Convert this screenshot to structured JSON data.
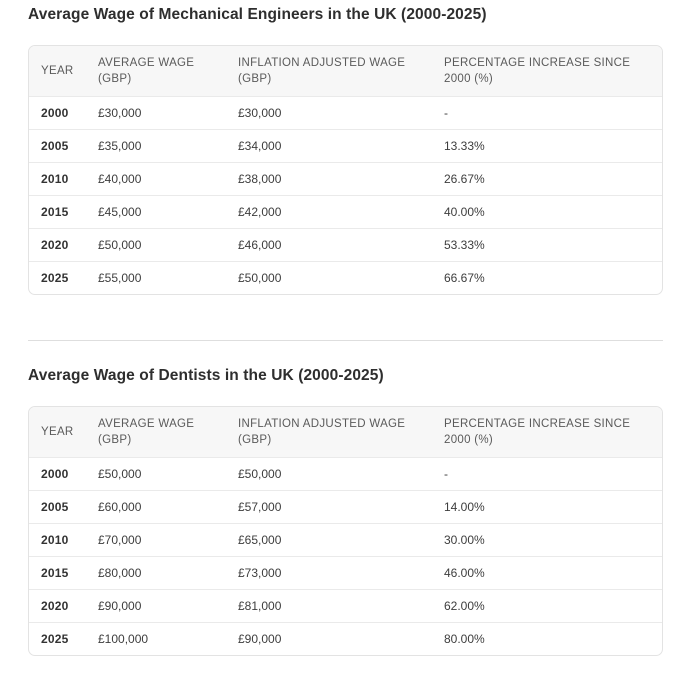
{
  "colors": {
    "title_text": "#2e2e2e",
    "header_bg": "#f7f7f7",
    "header_text": "#5a5a5a",
    "border": "#e3e3e3",
    "row_divider": "#eaeaea",
    "divider": "#dedede",
    "cell_text": "#3d3d3d",
    "year_text": "#333333"
  },
  "chart_data": [
    {
      "type": "table",
      "title": "Average Wage of Mechanical Engineers in the UK (2000-2025)",
      "columns": [
        "YEAR",
        "AVERAGE WAGE (GBP)",
        "INFLATION ADJUSTED WAGE (GBP)",
        "PERCENTAGE INCREASE SINCE 2000 (%)"
      ],
      "rows": [
        [
          "2000",
          "£30,000",
          "£30,000",
          "-"
        ],
        [
          "2005",
          "£35,000",
          "£34,000",
          "13.33%"
        ],
        [
          "2010",
          "£40,000",
          "£38,000",
          "26.67%"
        ],
        [
          "2015",
          "£45,000",
          "£42,000",
          "40.00%"
        ],
        [
          "2020",
          "£50,000",
          "£46,000",
          "53.33%"
        ],
        [
          "2025",
          "£55,000",
          "£50,000",
          "66.67%"
        ]
      ]
    },
    {
      "type": "table",
      "title": "Average Wage of Dentists in the UK (2000-2025)",
      "columns": [
        "YEAR",
        "AVERAGE WAGE (GBP)",
        "INFLATION ADJUSTED WAGE (GBP)",
        "PERCENTAGE INCREASE SINCE 2000 (%)"
      ],
      "rows": [
        [
          "2000",
          "£50,000",
          "£50,000",
          "-"
        ],
        [
          "2005",
          "£60,000",
          "£57,000",
          "14.00%"
        ],
        [
          "2010",
          "£70,000",
          "£65,000",
          "30.00%"
        ],
        [
          "2015",
          "£80,000",
          "£73,000",
          "46.00%"
        ],
        [
          "2020",
          "£90,000",
          "£81,000",
          "62.00%"
        ],
        [
          "2025",
          "£100,000",
          "£90,000",
          "80.00%"
        ]
      ]
    }
  ]
}
